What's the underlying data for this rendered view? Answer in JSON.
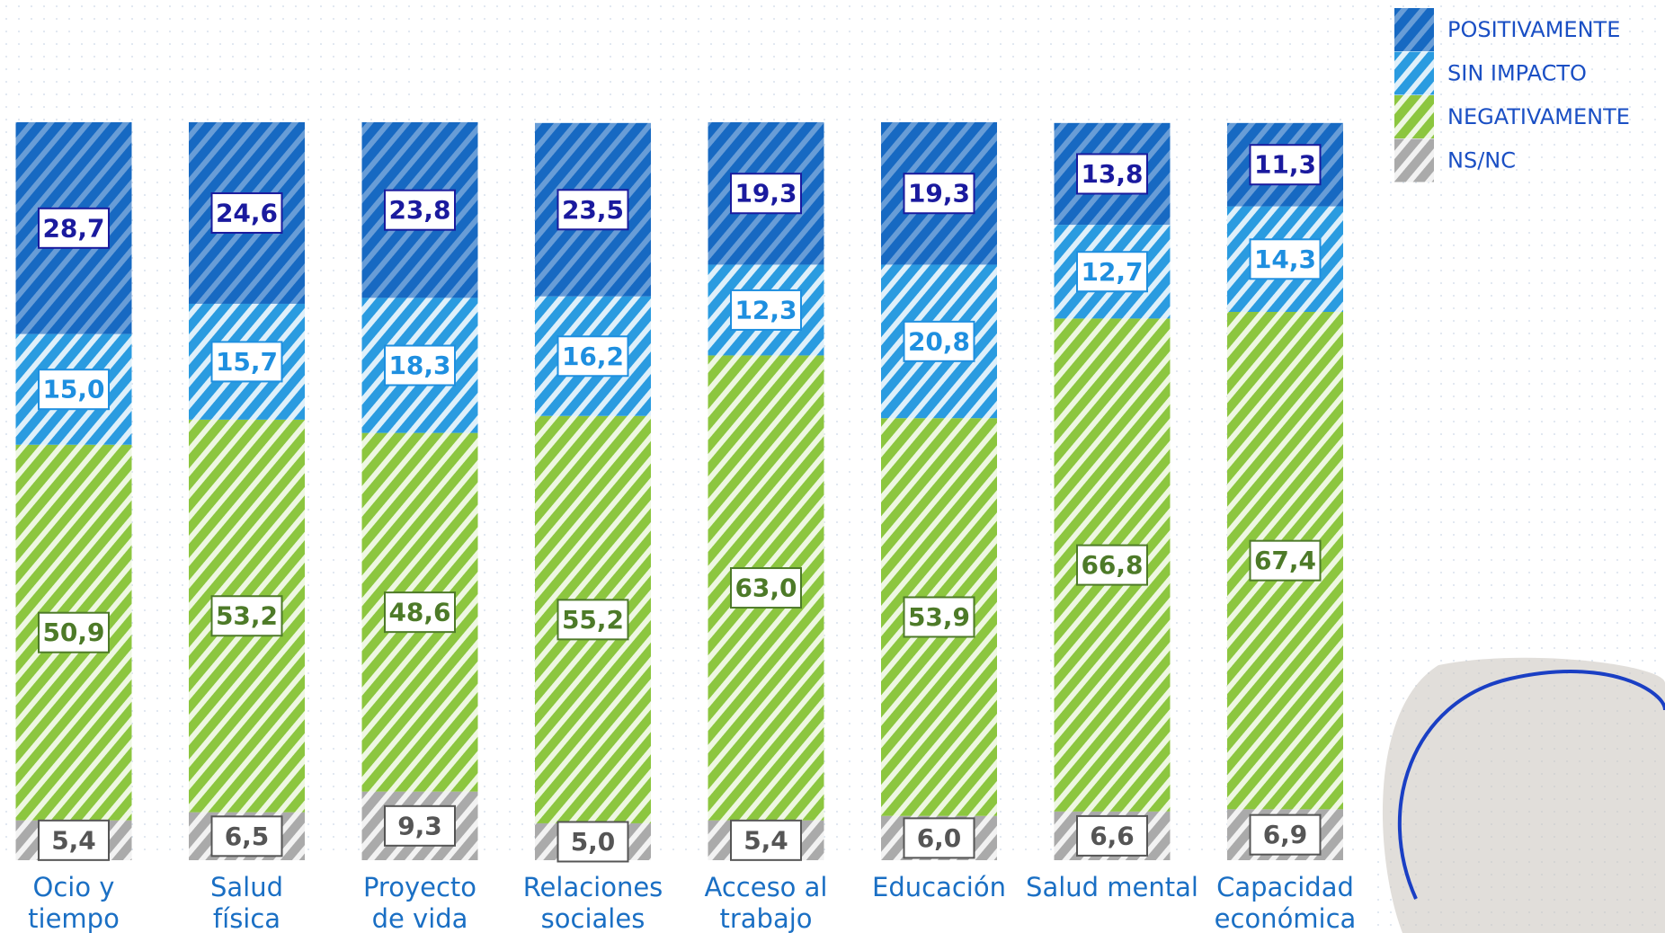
{
  "chart_data": {
    "type": "stacked_bar",
    "categories": [
      "Ocio y\ntiempo",
      "Salud\nfísica",
      "Proyecto\nde vida",
      "Relaciones\nsociales",
      "Acceso al\ntrabajo",
      "Educación",
      "Salud mental",
      "Capacidad\neconómica"
    ],
    "ylim": [
      0,
      100
    ],
    "legend": "top-right",
    "series": [
      {
        "name": "POSITIVAMENTE",
        "color": "#1769c2",
        "label_color": "#1a1a9e",
        "values": [
          28.7,
          24.6,
          23.8,
          23.5,
          19.3,
          19.3,
          13.8,
          11.3
        ],
        "value_labels": [
          "28,7",
          "24,6",
          "23,8",
          "23,5",
          "19,3",
          "19,3",
          "13,8",
          "11,3"
        ]
      },
      {
        "name": "SIN IMPACTO",
        "color": "#2a9be0",
        "label_color": "#1e8fe0",
        "values": [
          15.0,
          15.7,
          18.3,
          16.2,
          12.3,
          20.8,
          12.7,
          14.3
        ],
        "value_labels": [
          "15,0",
          "15,7",
          "18,3",
          "16,2",
          "12,3",
          "20,8",
          "12,7",
          "14,3"
        ]
      },
      {
        "name": "NEGATIVAMENTE",
        "color": "#8cc63f",
        "label_color": "#4d7a28",
        "values": [
          50.9,
          53.2,
          48.6,
          55.2,
          63.0,
          53.9,
          66.8,
          67.4
        ],
        "value_labels": [
          "50,9",
          "53,2",
          "48,6",
          "55,2",
          "63,0",
          "53,9",
          "66,8",
          "67,4"
        ]
      },
      {
        "name": "NS/NC",
        "color": "#aaaaaa",
        "label_color": "#555555",
        "values": [
          5.4,
          6.5,
          9.3,
          5.0,
          5.4,
          6.0,
          6.6,
          6.9
        ],
        "value_labels": [
          "5,4",
          "6,5",
          "9,3",
          "5,0",
          "5,4",
          "6,0",
          "6,6",
          "6,9"
        ]
      }
    ]
  }
}
